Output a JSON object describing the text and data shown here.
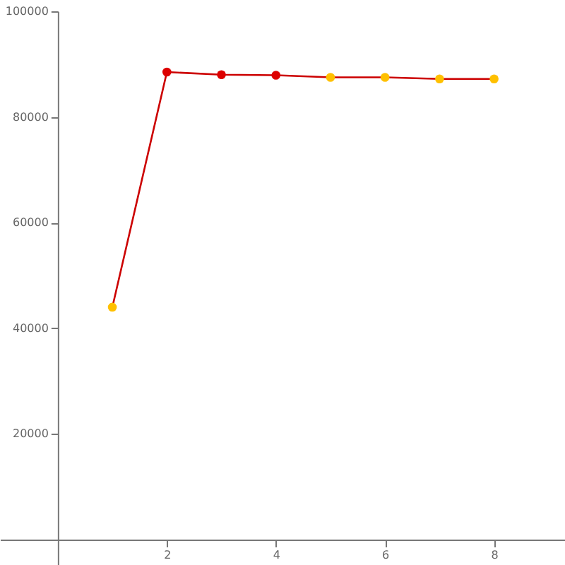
{
  "chart_data": {
    "type": "line",
    "x": [
      1,
      2,
      3,
      4,
      5,
      6,
      7,
      8
    ],
    "series": [
      {
        "color": "#cc0000",
        "values": [
          44000,
          88500,
          88000,
          87900,
          87500,
          87500,
          87200,
          87200
        ],
        "colors": [
          "#ffc000",
          "#dd0000",
          "#dd0000",
          "#dd0000",
          "#ffc000",
          "#ffc000",
          "#ffc000",
          "#ffc000"
        ]
      }
    ],
    "xlim": [
      -1.06,
      9.3
    ],
    "ylim": [
      -4800,
      100000
    ],
    "xticks": [
      2,
      4,
      6,
      8
    ],
    "yticks": [
      20000,
      40000,
      60000,
      80000,
      100000
    ],
    "grid": false,
    "marker": "circle",
    "line_style": "solid"
  }
}
